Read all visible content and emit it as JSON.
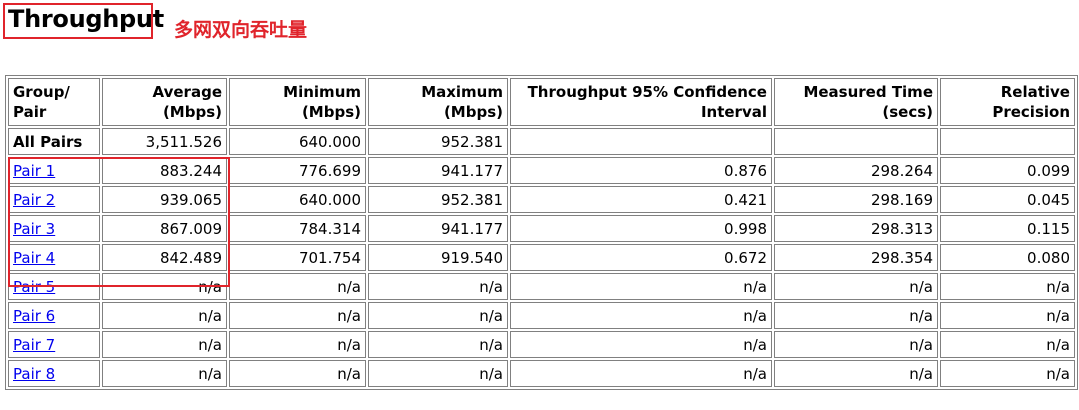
{
  "header": {
    "title": "Throughput",
    "annotation": "多网双向吞吐量"
  },
  "table": {
    "columns": [
      {
        "line1": "Group/",
        "line2": "Pair"
      },
      {
        "line1": "Average",
        "line2": "(Mbps)"
      },
      {
        "line1": "Minimum",
        "line2": "(Mbps)"
      },
      {
        "line1": "Maximum",
        "line2": "(Mbps)"
      },
      {
        "line1": "Throughput 95% Confidence",
        "line2": "Interval"
      },
      {
        "line1": "Measured Time",
        "line2": "(secs)"
      },
      {
        "line1": "Relative",
        "line2": "Precision"
      }
    ],
    "summary": {
      "label": "All Pairs",
      "average": "3,511.526",
      "minimum": "640.000",
      "maximum": "952.381",
      "confidence": "",
      "measured": "",
      "precision": ""
    },
    "rows": [
      {
        "label": "Pair 1",
        "average": "883.244",
        "minimum": "776.699",
        "maximum": "941.177",
        "confidence": "0.876",
        "measured": "298.264",
        "precision": "0.099"
      },
      {
        "label": "Pair 2",
        "average": "939.065",
        "minimum": "640.000",
        "maximum": "952.381",
        "confidence": "0.421",
        "measured": "298.169",
        "precision": "0.045"
      },
      {
        "label": "Pair 3",
        "average": "867.009",
        "minimum": "784.314",
        "maximum": "941.177",
        "confidence": "0.998",
        "measured": "298.313",
        "precision": "0.115"
      },
      {
        "label": "Pair 4",
        "average": "842.489",
        "minimum": "701.754",
        "maximum": "919.540",
        "confidence": "0.672",
        "measured": "298.354",
        "precision": "0.080"
      },
      {
        "label": "Pair 5",
        "average": "n/a",
        "minimum": "n/a",
        "maximum": "n/a",
        "confidence": "n/a",
        "measured": "n/a",
        "precision": "n/a"
      },
      {
        "label": "Pair 6",
        "average": "n/a",
        "minimum": "n/a",
        "maximum": "n/a",
        "confidence": "n/a",
        "measured": "n/a",
        "precision": "n/a"
      },
      {
        "label": "Pair 7",
        "average": "n/a",
        "minimum": "n/a",
        "maximum": "n/a",
        "confidence": "n/a",
        "measured": "n/a",
        "precision": "n/a"
      },
      {
        "label": "Pair 8",
        "average": "n/a",
        "minimum": "n/a",
        "maximum": "n/a",
        "confidence": "n/a",
        "measured": "n/a",
        "precision": "n/a"
      }
    ]
  },
  "colors": {
    "highlight": "#e0242b",
    "link": "#0000ee",
    "border": "#808080"
  }
}
